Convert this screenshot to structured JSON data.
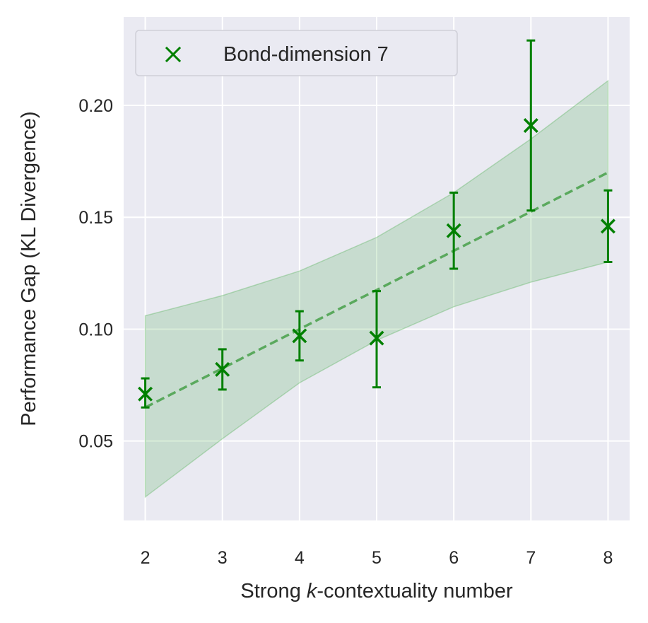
{
  "chart_data": {
    "type": "scatter",
    "title": "",
    "xlabel_prefix": "Strong ",
    "xlabel_italic": "k",
    "xlabel_suffix": "-contextuality number",
    "ylabel": "Performance Gap (KL Divergence)",
    "x": [
      2,
      3,
      4,
      5,
      6,
      7,
      8
    ],
    "xticks": [
      "2",
      "3",
      "4",
      "5",
      "6",
      "7",
      "8"
    ],
    "yticks": [
      "0.05",
      "0.10",
      "0.15",
      "0.20"
    ],
    "ytick_values": [
      0.05,
      0.1,
      0.15,
      0.2
    ],
    "xlim": [
      1.72,
      8.28
    ],
    "ylim": [
      0.0145,
      0.2395
    ],
    "grid": true,
    "legend_position": "top-left",
    "series": [
      {
        "name": "Bond-dimension 7",
        "marker": "x",
        "color": "#008000",
        "values": [
          0.071,
          0.082,
          0.097,
          0.096,
          0.144,
          0.191,
          0.146
        ],
        "err_low": [
          0.065,
          0.073,
          0.086,
          0.074,
          0.127,
          0.153,
          0.13
        ],
        "err_high": [
          0.078,
          0.091,
          0.108,
          0.117,
          0.161,
          0.229,
          0.162
        ]
      }
    ],
    "fit_line": {
      "style": "dashed",
      "x": [
        2,
        8
      ],
      "y": [
        0.065,
        0.17
      ]
    },
    "confidence_band": {
      "x": [
        2,
        3,
        4,
        5,
        6,
        7,
        8
      ],
      "upper": [
        0.106,
        0.115,
        0.126,
        0.141,
        0.161,
        0.185,
        0.211
      ],
      "lower": [
        0.025,
        0.051,
        0.076,
        0.095,
        0.11,
        0.121,
        0.13
      ]
    }
  },
  "legend": {
    "entry_label": "Bond-dimension 7"
  },
  "colors": {
    "plot_bg": "#eaeaf2",
    "grid": "#ffffff",
    "series": "#008000",
    "band": "#4caf50"
  }
}
